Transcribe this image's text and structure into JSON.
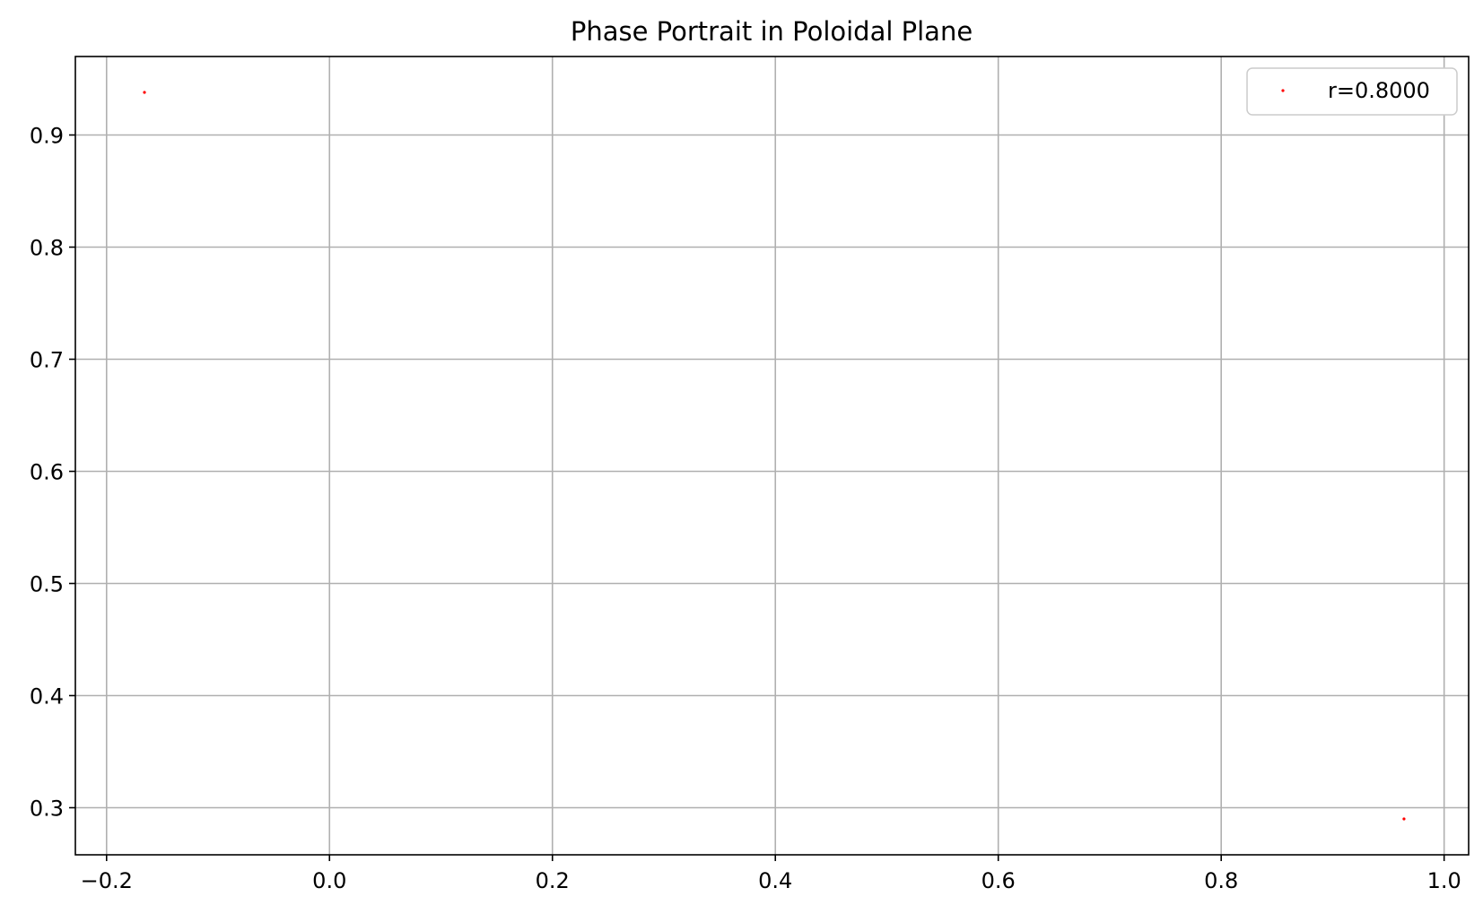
{
  "chart_data": {
    "type": "scatter",
    "title": "Phase Portrait in Poloidal Plane",
    "xlabel": "",
    "ylabel": "",
    "xlim": [
      -0.228,
      1.022
    ],
    "ylim": [
      0.258,
      0.97
    ],
    "x_ticks": [
      -0.2,
      0.0,
      0.2,
      0.4,
      0.6,
      0.8,
      1.0
    ],
    "x_tick_labels": [
      "−0.2",
      "0.0",
      "0.2",
      "0.4",
      "0.6",
      "0.8",
      "1.0"
    ],
    "y_ticks": [
      0.3,
      0.4,
      0.5,
      0.6,
      0.7,
      0.8,
      0.9
    ],
    "y_tick_labels": [
      "0.3",
      "0.4",
      "0.5",
      "0.6",
      "0.7",
      "0.8",
      "0.9"
    ],
    "grid": true,
    "legend_position": "top-right",
    "series": [
      {
        "name": "r=0.8000",
        "color": "#ff0000",
        "points": [
          {
            "x": -0.166,
            "y": 0.938
          },
          {
            "x": 0.964,
            "y": 0.29
          }
        ]
      }
    ]
  }
}
